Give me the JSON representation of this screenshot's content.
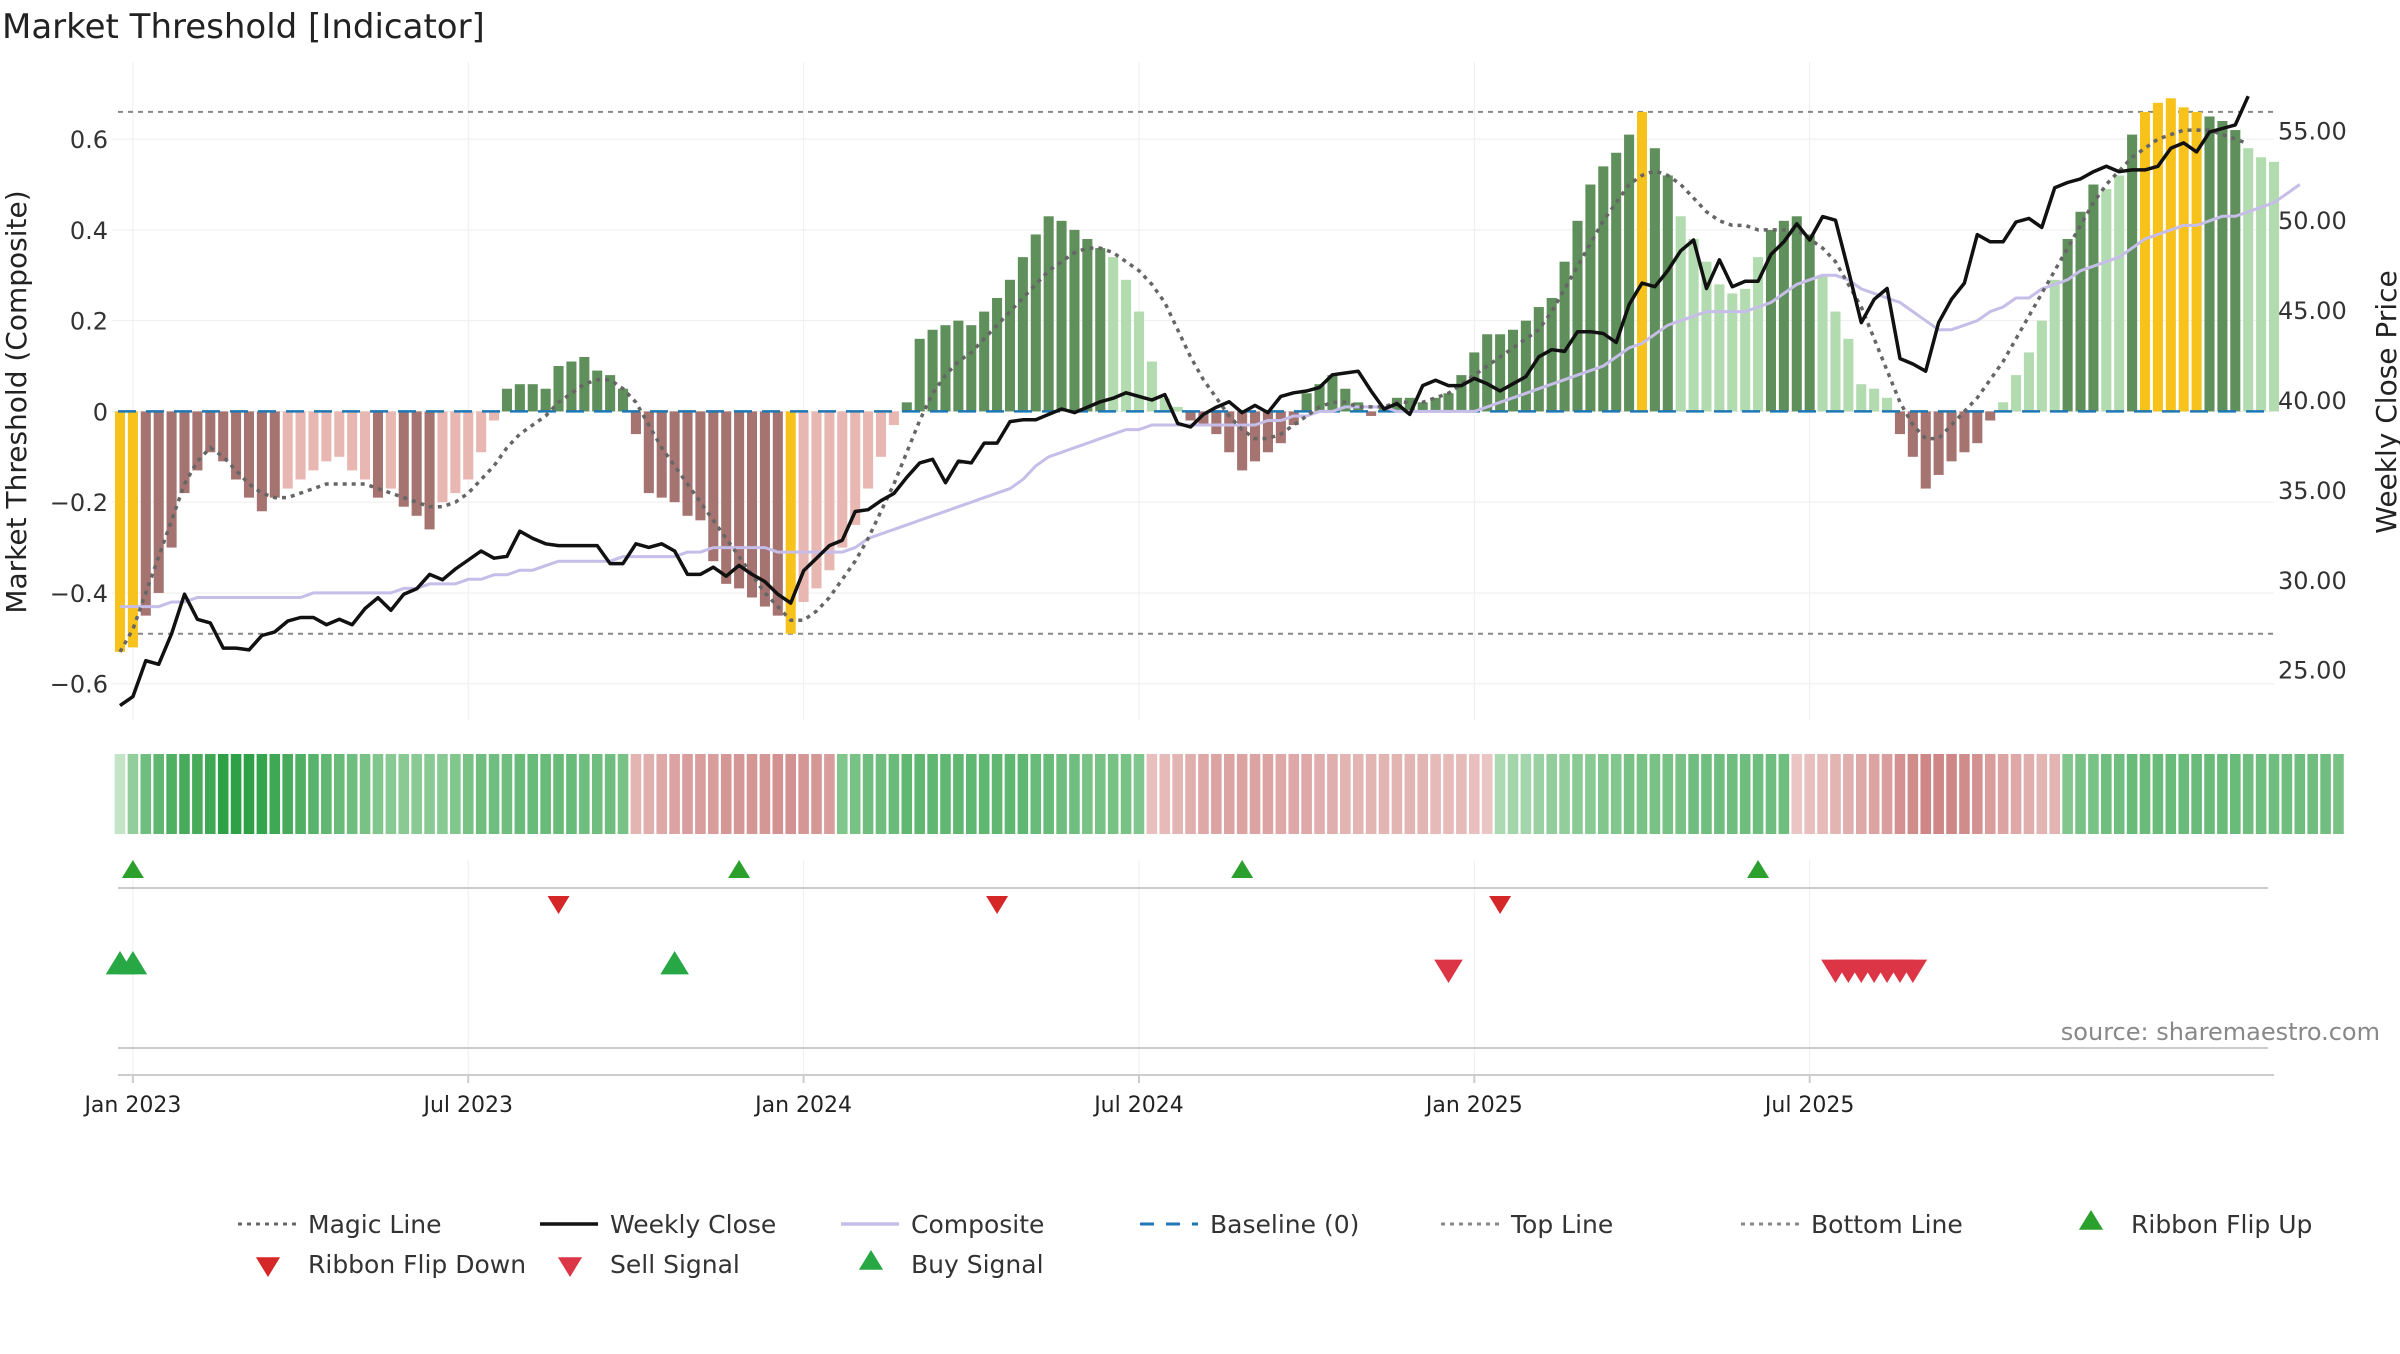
{
  "chart_data": {
    "type": "bar",
    "title": "Market Threshold [Indicator]",
    "ylabel": "Market Threshold (Composite)",
    "y2label": "Weekly Close Price",
    "source": "source: sharemaestro.com",
    "ylim": [
      -0.68,
      0.77
    ],
    "y2lim": [
      22.2,
      58.8
    ],
    "yticks": [
      0.6,
      0.4,
      0.2,
      0,
      -0.2,
      -0.4,
      -0.6
    ],
    "ytick_labels": [
      "0.6",
      "0.4",
      "0.2",
      "0",
      "−0.2",
      "−0.4",
      "−0.6"
    ],
    "y2ticks": [
      55,
      50,
      45,
      40,
      35,
      30,
      25
    ],
    "y2tick_labels": [
      "55.00",
      "50.00",
      "45.00",
      "40.00",
      "35.00",
      "30.00",
      "25.00"
    ],
    "xticks": [
      1,
      27,
      53,
      79,
      105,
      131
    ],
    "xtick_labels": [
      "Jan 2023",
      "Jul 2023",
      "Jan 2024",
      "Jul 2024",
      "Jan 2025",
      "Jul 2025"
    ],
    "grid": true,
    "legend_position": "bottom",
    "top_line": 0.66,
    "bottom_line": -0.49,
    "bars": [
      -0.53,
      -0.52,
      -0.45,
      -0.4,
      -0.3,
      -0.18,
      -0.13,
      -0.09,
      -0.11,
      -0.15,
      -0.19,
      -0.22,
      -0.19,
      -0.17,
      -0.15,
      -0.13,
      -0.11,
      -0.1,
      -0.13,
      -0.15,
      -0.19,
      -0.17,
      -0.21,
      -0.23,
      -0.26,
      -0.2,
      -0.18,
      -0.15,
      -0.09,
      -0.02,
      0.05,
      0.06,
      0.06,
      0.05,
      0.1,
      0.11,
      0.12,
      0.09,
      0.08,
      0.05,
      -0.05,
      -0.18,
      -0.19,
      -0.2,
      -0.23,
      -0.24,
      -0.33,
      -0.38,
      -0.39,
      -0.41,
      -0.43,
      -0.45,
      -0.49,
      -0.42,
      -0.39,
      -0.35,
      -0.3,
      -0.25,
      -0.17,
      -0.1,
      -0.03,
      0.02,
      0.16,
      0.18,
      0.19,
      0.2,
      0.19,
      0.22,
      0.25,
      0.29,
      0.34,
      0.39,
      0.43,
      0.42,
      0.4,
      0.38,
      0.36,
      0.34,
      0.29,
      0.22,
      0.11,
      0.03,
      0.01,
      -0.02,
      -0.03,
      -0.05,
      -0.09,
      -0.13,
      -0.11,
      -0.09,
      -0.07,
      -0.03,
      0.04,
      0.06,
      0.08,
      0.05,
      0.02,
      -0.01,
      0.01,
      0.03,
      0.03,
      0.02,
      0.03,
      0.04,
      0.08,
      0.13,
      0.17,
      0.17,
      0.18,
      0.2,
      0.23,
      0.25,
      0.33,
      0.42,
      0.5,
      0.54,
      0.57,
      0.61,
      0.66,
      0.58,
      0.52,
      0.43,
      0.38,
      0.33,
      0.28,
      0.26,
      0.27,
      0.34,
      0.4,
      0.42,
      0.43,
      0.39,
      0.3,
      0.22,
      0.16,
      0.06,
      0.05,
      0.03,
      -0.05,
      -0.1,
      -0.17,
      -0.14,
      -0.11,
      -0.09,
      -0.07,
      -0.02,
      0.02,
      0.08,
      0.13,
      0.2,
      0.29,
      0.38,
      0.44,
      0.5,
      0.49,
      0.52,
      0.61,
      0.66,
      0.68,
      0.69,
      0.67,
      0.66,
      0.65,
      0.64,
      0.62,
      0.58,
      0.56,
      0.55
    ],
    "bar_colors": {
      "strong_up": "#5f8f5a",
      "weak_up": "#b2dbaf",
      "strong_down": "#a57370",
      "weak_down": "#e8b7b2",
      "extreme": "#f7c21b"
    },
    "series": [
      {
        "name": "Magic Line",
        "color": "#666666",
        "style": "dotted",
        "values": [
          -0.53,
          -0.48,
          -0.4,
          -0.32,
          -0.24,
          -0.16,
          -0.11,
          -0.08,
          -0.1,
          -0.13,
          -0.16,
          -0.18,
          -0.19,
          -0.19,
          -0.18,
          -0.17,
          -0.16,
          -0.16,
          -0.16,
          -0.16,
          -0.17,
          -0.18,
          -0.19,
          -0.2,
          -0.21,
          -0.21,
          -0.2,
          -0.18,
          -0.15,
          -0.12,
          -0.08,
          -0.05,
          -0.03,
          -0.01,
          0.02,
          0.04,
          0.06,
          0.07,
          0.07,
          0.05,
          0.02,
          -0.03,
          -0.08,
          -0.12,
          -0.16,
          -0.2,
          -0.24,
          -0.28,
          -0.32,
          -0.36,
          -0.4,
          -0.43,
          -0.46,
          -0.46,
          -0.44,
          -0.41,
          -0.37,
          -0.33,
          -0.28,
          -0.22,
          -0.16,
          -0.09,
          -0.02,
          0.04,
          0.08,
          0.11,
          0.13,
          0.16,
          0.19,
          0.22,
          0.25,
          0.28,
          0.31,
          0.33,
          0.35,
          0.36,
          0.36,
          0.35,
          0.33,
          0.31,
          0.28,
          0.24,
          0.18,
          0.12,
          0.07,
          0.03,
          -0.01,
          -0.04,
          -0.06,
          -0.06,
          -0.05,
          -0.03,
          -0.01,
          0.01,
          0.02,
          0.02,
          0.01,
          0.01,
          0.01,
          0.02,
          0.02,
          0.02,
          0.03,
          0.04,
          0.06,
          0.08,
          0.1,
          0.12,
          0.14,
          0.16,
          0.18,
          0.22,
          0.27,
          0.32,
          0.37,
          0.42,
          0.46,
          0.5,
          0.52,
          0.53,
          0.52,
          0.5,
          0.47,
          0.44,
          0.42,
          0.41,
          0.41,
          0.4,
          0.4,
          0.4,
          0.4,
          0.38,
          0.36,
          0.33,
          0.28,
          0.23,
          0.16,
          0.09,
          0.02,
          -0.03,
          -0.06,
          -0.06,
          -0.03,
          0.0,
          0.03,
          0.07,
          0.11,
          0.16,
          0.21,
          0.26,
          0.31,
          0.36,
          0.41,
          0.46,
          0.5,
          0.53,
          0.56,
          0.58,
          0.6,
          0.61,
          0.62,
          0.62,
          0.62,
          0.61,
          0.6,
          0.59
        ]
      },
      {
        "name": "Weekly Close",
        "color": "#111111",
        "style": "solid",
        "axis": "right",
        "values": [
          23.0,
          23.5,
          25.5,
          25.3,
          27.0,
          29.2,
          27.8,
          27.6,
          26.2,
          26.2,
          26.1,
          26.9,
          27.1,
          27.7,
          27.9,
          27.9,
          27.5,
          27.8,
          27.5,
          28.4,
          29.0,
          28.3,
          29.2,
          29.5,
          30.3,
          30.0,
          30.6,
          31.1,
          31.6,
          31.2,
          31.3,
          32.7,
          32.3,
          32.0,
          31.9,
          31.9,
          31.9,
          31.9,
          30.9,
          30.9,
          32.0,
          31.8,
          32.0,
          31.6,
          30.3,
          30.3,
          30.7,
          30.2,
          30.8,
          30.3,
          29.9,
          29.2,
          28.7,
          30.5,
          31.2,
          31.9,
          32.2,
          33.8,
          33.9,
          34.4,
          34.8,
          35.7,
          36.5,
          36.7,
          35.4,
          36.6,
          36.5,
          37.6,
          37.6,
          38.8,
          38.9,
          38.9,
          39.2,
          39.5,
          39.3,
          39.6,
          39.9,
          40.1,
          40.4,
          40.2,
          40.0,
          40.3,
          38.7,
          38.5,
          39.2,
          39.6,
          39.9,
          39.3,
          39.7,
          39.3,
          40.2,
          40.4,
          40.5,
          40.7,
          41.4,
          41.5,
          41.6,
          40.5,
          39.5,
          39.8,
          39.2,
          40.8,
          41.1,
          40.8,
          40.8,
          41.2,
          40.9,
          40.5,
          40.9,
          41.3,
          42.4,
          42.8,
          42.7,
          43.8,
          43.8,
          43.7,
          43.2,
          45.3,
          46.5,
          46.3,
          47.2,
          48.3,
          48.9,
          46.2,
          47.8,
          46.3,
          46.6,
          46.6,
          48.1,
          48.8,
          49.8,
          48.9,
          50.2,
          50.0,
          47.2,
          44.3,
          45.6,
          46.2,
          42.3,
          42.0,
          41.6,
          44.3,
          45.6,
          46.5,
          49.2,
          48.8,
          48.8,
          49.9,
          50.1,
          49.6,
          51.8,
          52.1,
          52.3,
          52.7,
          53.0,
          52.7,
          52.8,
          52.8,
          53.0,
          54.0,
          54.3,
          53.8,
          54.9,
          55.1,
          55.3,
          56.9
        ]
      },
      {
        "name": "Composite",
        "color": "#c6bde8",
        "style": "solid",
        "values": [
          -0.43,
          -0.43,
          -0.43,
          -0.43,
          -0.42,
          -0.42,
          -0.41,
          -0.41,
          -0.41,
          -0.41,
          -0.41,
          -0.41,
          -0.41,
          -0.41,
          -0.41,
          -0.4,
          -0.4,
          -0.4,
          -0.4,
          -0.4,
          -0.4,
          -0.4,
          -0.39,
          -0.39,
          -0.38,
          -0.38,
          -0.38,
          -0.37,
          -0.37,
          -0.36,
          -0.36,
          -0.35,
          -0.35,
          -0.34,
          -0.33,
          -0.33,
          -0.33,
          -0.33,
          -0.33,
          -0.32,
          -0.32,
          -0.32,
          -0.32,
          -0.32,
          -0.31,
          -0.31,
          -0.3,
          -0.3,
          -0.3,
          -0.3,
          -0.3,
          -0.31,
          -0.31,
          -0.31,
          -0.31,
          -0.31,
          -0.31,
          -0.3,
          -0.28,
          -0.27,
          -0.26,
          -0.25,
          -0.24,
          -0.23,
          -0.22,
          -0.21,
          -0.2,
          -0.19,
          -0.18,
          -0.17,
          -0.15,
          -0.12,
          -0.1,
          -0.09,
          -0.08,
          -0.07,
          -0.06,
          -0.05,
          -0.04,
          -0.04,
          -0.03,
          -0.03,
          -0.03,
          -0.03,
          -0.03,
          -0.03,
          -0.03,
          -0.03,
          -0.03,
          -0.02,
          -0.02,
          -0.01,
          -0.01,
          0.0,
          0.0,
          0.01,
          0.01,
          0.01,
          0.01,
          0.0,
          0.0,
          0.0,
          0.0,
          0.0,
          0.0,
          0.0,
          0.01,
          0.02,
          0.03,
          0.04,
          0.05,
          0.06,
          0.07,
          0.08,
          0.09,
          0.1,
          0.12,
          0.14,
          0.15,
          0.17,
          0.19,
          0.2,
          0.21,
          0.22,
          0.22,
          0.22,
          0.22,
          0.23,
          0.24,
          0.26,
          0.28,
          0.29,
          0.3,
          0.3,
          0.29,
          0.27,
          0.26,
          0.25,
          0.24,
          0.22,
          0.2,
          0.18,
          0.18,
          0.19,
          0.2,
          0.22,
          0.23,
          0.25,
          0.25,
          0.27,
          0.28,
          0.29,
          0.31,
          0.32,
          0.33,
          0.34,
          0.36,
          0.38,
          0.39,
          0.4,
          0.41,
          0.41,
          0.42,
          0.43,
          0.43,
          0.44,
          0.45,
          0.46,
          0.48,
          0.5
        ]
      },
      {
        "name": "Baseline (0)",
        "color": "#1f77b4",
        "style": "dashed",
        "value": 0
      },
      {
        "name": "Top Line",
        "color": "#888888",
        "style": "dotted",
        "value": 0.66
      },
      {
        "name": "Bottom Line",
        "color": "#888888",
        "style": "dotted",
        "value": -0.49
      }
    ],
    "ribbon": {
      "values": [
        0.1,
        0.4,
        0.6,
        0.7,
        0.8,
        0.85,
        0.85,
        0.9,
        1.0,
        1.0,
        1.0,
        0.95,
        0.9,
        0.85,
        0.8,
        0.75,
        0.7,
        0.65,
        0.6,
        0.55,
        0.5,
        0.45,
        0.45,
        0.45,
        0.45,
        0.45,
        0.5,
        0.55,
        0.6,
        0.6,
        0.6,
        0.65,
        0.65,
        0.65,
        0.65,
        0.65,
        0.6,
        0.6,
        0.6,
        0.55,
        -0.3,
        -0.35,
        -0.4,
        -0.45,
        -0.5,
        -0.5,
        -0.5,
        -0.55,
        -0.55,
        -0.55,
        -0.55,
        -0.6,
        -0.6,
        -0.55,
        -0.55,
        -0.5,
        0.5,
        0.55,
        0.6,
        0.6,
        0.65,
        0.7,
        0.7,
        0.7,
        0.7,
        0.7,
        0.7,
        0.7,
        0.7,
        0.7,
        0.7,
        0.65,
        0.65,
        0.6,
        0.6,
        0.55,
        0.55,
        0.55,
        0.55,
        0.5,
        -0.2,
        -0.25,
        -0.3,
        -0.35,
        -0.4,
        -0.45,
        -0.45,
        -0.45,
        -0.45,
        -0.45,
        -0.4,
        -0.4,
        -0.4,
        -0.35,
        -0.35,
        -0.3,
        -0.3,
        -0.3,
        -0.3,
        -0.3,
        -0.3,
        -0.3,
        -0.25,
        -0.25,
        -0.25,
        -0.2,
        -0.15,
        0.25,
        0.3,
        0.3,
        0.35,
        0.4,
        0.4,
        0.45,
        0.45,
        0.5,
        0.5,
        0.55,
        0.55,
        0.55,
        0.55,
        0.55,
        0.6,
        0.6,
        0.6,
        0.6,
        0.6,
        0.6,
        0.6,
        0.6,
        -0.15,
        -0.2,
        -0.25,
        -0.3,
        -0.35,
        -0.4,
        -0.45,
        -0.5,
        -0.6,
        -0.65,
        -0.7,
        -0.7,
        -0.7,
        -0.65,
        -0.6,
        -0.5,
        -0.45,
        -0.4,
        -0.35,
        -0.3,
        -0.3,
        0.5,
        0.55,
        0.55,
        0.6,
        0.6,
        0.65,
        0.65,
        0.65,
        0.65,
        0.65,
        0.65,
        0.65,
        0.65,
        0.65,
        0.6,
        0.6,
        0.6,
        0.6,
        0.6,
        0.6,
        0.6,
        0.55
      ]
    },
    "ribbon_flip_up": [
      1,
      48,
      87,
      127
    ],
    "ribbon_flip_down": [
      34,
      68,
      107
    ],
    "buy_signal": [
      0,
      1,
      43
    ],
    "sell_signal": [
      103,
      133,
      134,
      135,
      136,
      137,
      138,
      139
    ]
  },
  "legend": [
    {
      "label": "Magic Line",
      "kind": "dotted",
      "color": "#666666"
    },
    {
      "label": "Weekly Close",
      "kind": "solid",
      "color": "#111111"
    },
    {
      "label": "Composite",
      "kind": "solid",
      "color": "#c6bde8"
    },
    {
      "label": "Baseline (0)",
      "kind": "dashed",
      "color": "#1f77b4"
    },
    {
      "label": "Top Line",
      "kind": "dotted",
      "color": "#888888"
    },
    {
      "label": "Bottom Line",
      "kind": "dotted",
      "color": "#888888"
    },
    {
      "label": "Ribbon Flip Up",
      "kind": "triangle-up",
      "color": "#2ca02c"
    },
    {
      "label": "Ribbon Flip Down",
      "kind": "triangle-down",
      "color": "#d62728"
    },
    {
      "label": "Sell Signal",
      "kind": "triangle-down",
      "color": "#dc3545"
    },
    {
      "label": "Buy Signal",
      "kind": "triangle-up",
      "color": "#28a745"
    }
  ]
}
